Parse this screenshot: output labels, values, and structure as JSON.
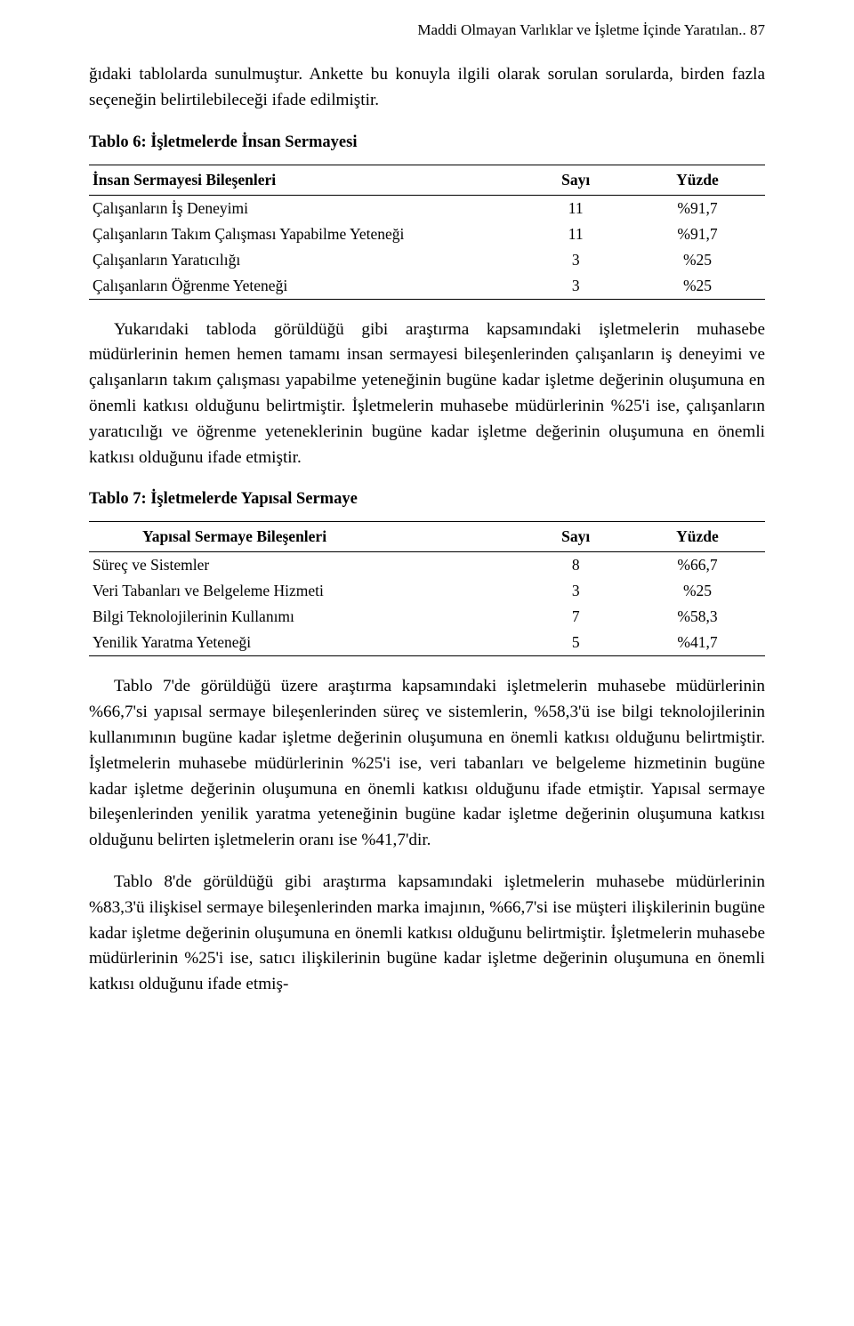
{
  "runningHead": "Maddi Olmayan Varlıklar ve İşletme İçinde Yaratılan.. 87",
  "para1": "ğıdaki tablolarda sunulmuştur. Ankette bu konuyla ilgili olarak sorulan sorularda, birden fazla seçeneğin belirtilebileceği ifade edilmiştir.",
  "table6": {
    "title": "Tablo 6: İşletmelerde İnsan Sermayesi",
    "headers": {
      "c0": "İnsan Sermayesi Bileşenleri",
      "c1": "Sayı",
      "c2": "Yüzde"
    },
    "rows": [
      {
        "c0": "Çalışanların İş Deneyimi",
        "c1": "11",
        "c2": "%91,7"
      },
      {
        "c0": "Çalışanların Takım Çalışması Yapabilme Yeteneği",
        "c1": "11",
        "c2": "%91,7"
      },
      {
        "c0": "Çalışanların Yaratıcılığı",
        "c1": "3",
        "c2": "%25"
      },
      {
        "c0": "Çalışanların Öğrenme Yeteneği",
        "c1": "3",
        "c2": "%25"
      }
    ]
  },
  "para2": "Yukarıdaki tabloda görüldüğü gibi araştırma kapsamındaki işletmelerin muhasebe müdürlerinin hemen hemen tamamı insan sermayesi bileşenlerinden çalışanların iş deneyimi ve çalışanların takım çalışması yapabilme yeteneğinin bugüne kadar işletme değerinin oluşumuna en önemli katkısı olduğunu belirtmiştir. İşletmelerin muhasebe müdürlerinin %25'i ise, çalışanların yaratıcılığı ve öğrenme yeteneklerinin bugüne kadar işletme değerinin oluşumuna en önemli katkısı olduğunu ifade etmiştir.",
  "table7": {
    "title": "Tablo 7: İşletmelerde Yapısal Sermaye",
    "headers": {
      "c0": "Yapısal Sermaye Bileşenleri",
      "c1": "Sayı",
      "c2": "Yüzde"
    },
    "rows": [
      {
        "c0": "Süreç ve Sistemler",
        "c1": "8",
        "c2": "%66,7"
      },
      {
        "c0": "Veri Tabanları ve Belgeleme Hizmeti",
        "c1": "3",
        "c2": "%25"
      },
      {
        "c0": "Bilgi Teknolojilerinin Kullanımı",
        "c1": "7",
        "c2": "%58,3"
      },
      {
        "c0": "Yenilik Yaratma Yeteneği",
        "c1": "5",
        "c2": "%41,7"
      }
    ]
  },
  "para3": "Tablo 7'de görüldüğü üzere araştırma kapsamındaki işletmelerin muhasebe müdürlerinin %66,7'si yapısal sermaye bileşenlerinden süreç ve sistemlerin, %58,3'ü ise bilgi teknolojilerinin kullanımının bugüne kadar işletme değerinin oluşumuna en önemli katkısı olduğunu belirtmiştir. İşletmelerin muhasebe müdürlerinin %25'i ise, veri tabanları ve belgeleme hizmetinin bugüne kadar işletme değerinin oluşumuna en önemli katkısı olduğunu ifade etmiştir. Yapısal sermaye bileşenlerinden yenilik yaratma yeteneğinin bugüne kadar işletme değerinin oluşumuna katkısı olduğunu belirten işletmelerin oranı ise %41,7'dir.",
  "para4": "Tablo 8'de görüldüğü gibi araştırma kapsamındaki işletmelerin muhasebe müdürlerinin %83,3'ü ilişkisel sermaye bileşenlerinden marka imajının, %66,7'si ise müşteri ilişkilerinin bugüne kadar işletme değerinin oluşumuna en önemli katkısı olduğunu belirtmiştir. İşletmelerin muhasebe müdürlerinin %25'i ise, satıcı ilişkilerinin bugüne kadar işletme değerinin oluşumuna en önemli katkısı olduğunu ifade etmiş-"
}
